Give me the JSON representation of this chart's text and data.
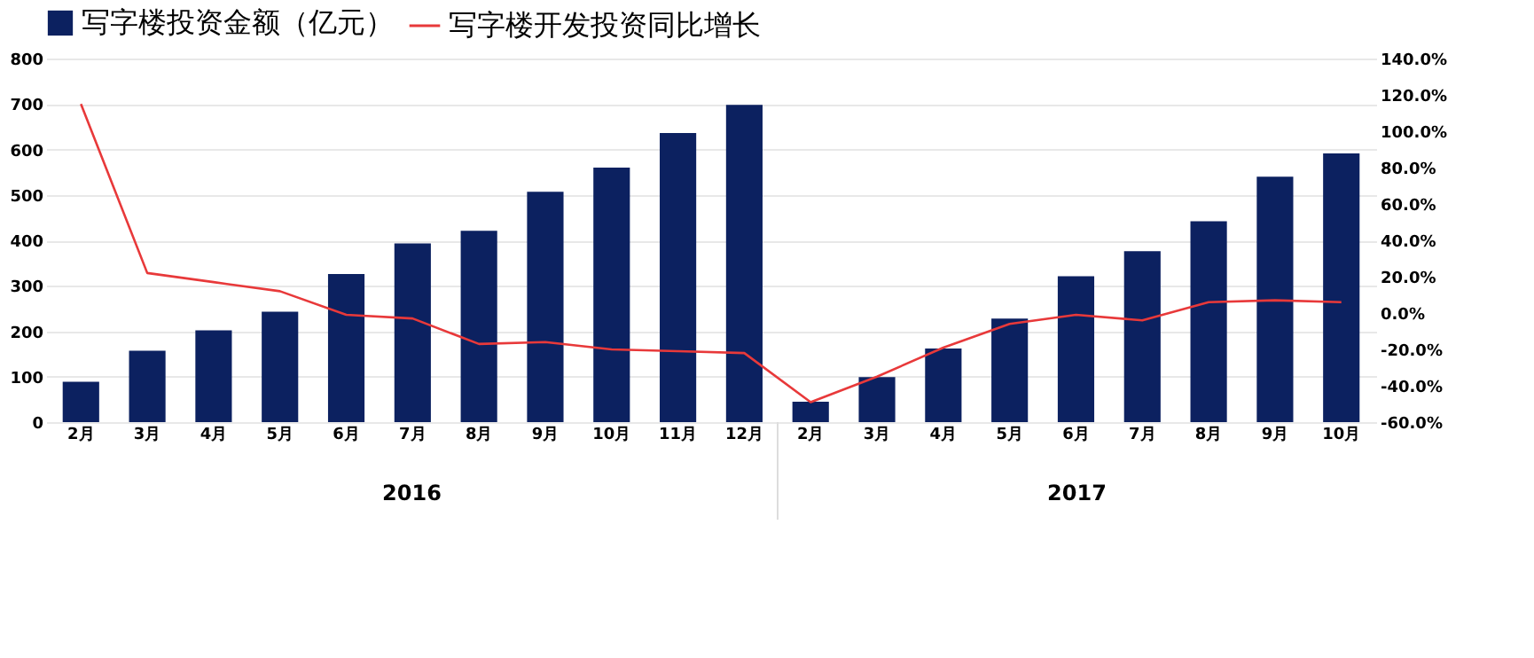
{
  "chart_data": {
    "type": "bar",
    "categories": [
      "2月",
      "3月",
      "4月",
      "5月",
      "6月",
      "7月",
      "8月",
      "9月",
      "10月",
      "11月",
      "12月",
      "2月",
      "3月",
      "4月",
      "5月",
      "6月",
      "7月",
      "8月",
      "9月",
      "10月"
    ],
    "series": [
      {
        "name": "写字楼投资金额（亿元）",
        "color": "#0c2160",
        "values": [
          89,
          157,
          202,
          243,
          326,
          393,
          421,
          507,
          560,
          636,
          698,
          45,
          99,
          162,
          228,
          321,
          376,
          442,
          540,
          591
        ]
      },
      {
        "name": "写字楼开发投资同比增长",
        "type": "line",
        "axis": "y2",
        "color": "#e8393a",
        "values": [
          115,
          22,
          17,
          12,
          -1,
          -3,
          -17,
          -16,
          -20,
          -21,
          -22,
          -49,
          -35,
          -19,
          -6,
          -1,
          -4,
          6,
          7,
          6
        ]
      }
    ],
    "ylim": [
      0,
      800
    ],
    "yticks": [
      0,
      100,
      200,
      300,
      400,
      500,
      600,
      700,
      800
    ],
    "y2lim": [
      -60,
      140
    ],
    "y2ticks": [
      {
        "value": -60,
        "label": "-60.0%"
      },
      {
        "value": -40,
        "label": "-40.0%"
      },
      {
        "value": -20,
        "label": "-20.0%"
      },
      {
        "value": 0,
        "label": "0.0%"
      },
      {
        "value": 20,
        "label": "20.0%"
      },
      {
        "value": 40,
        "label": "40.0%"
      },
      {
        "value": 60,
        "label": "60.0%"
      },
      {
        "value": 80,
        "label": "80.0%"
      },
      {
        "value": 100,
        "label": "100.0%"
      },
      {
        "value": 120,
        "label": "120.0%"
      },
      {
        "value": 140,
        "label": "140.0%"
      }
    ],
    "annotations": [
      "2016",
      "2017"
    ],
    "grid": "y",
    "legend": "top",
    "marker": "none",
    "line_style": "solid"
  }
}
